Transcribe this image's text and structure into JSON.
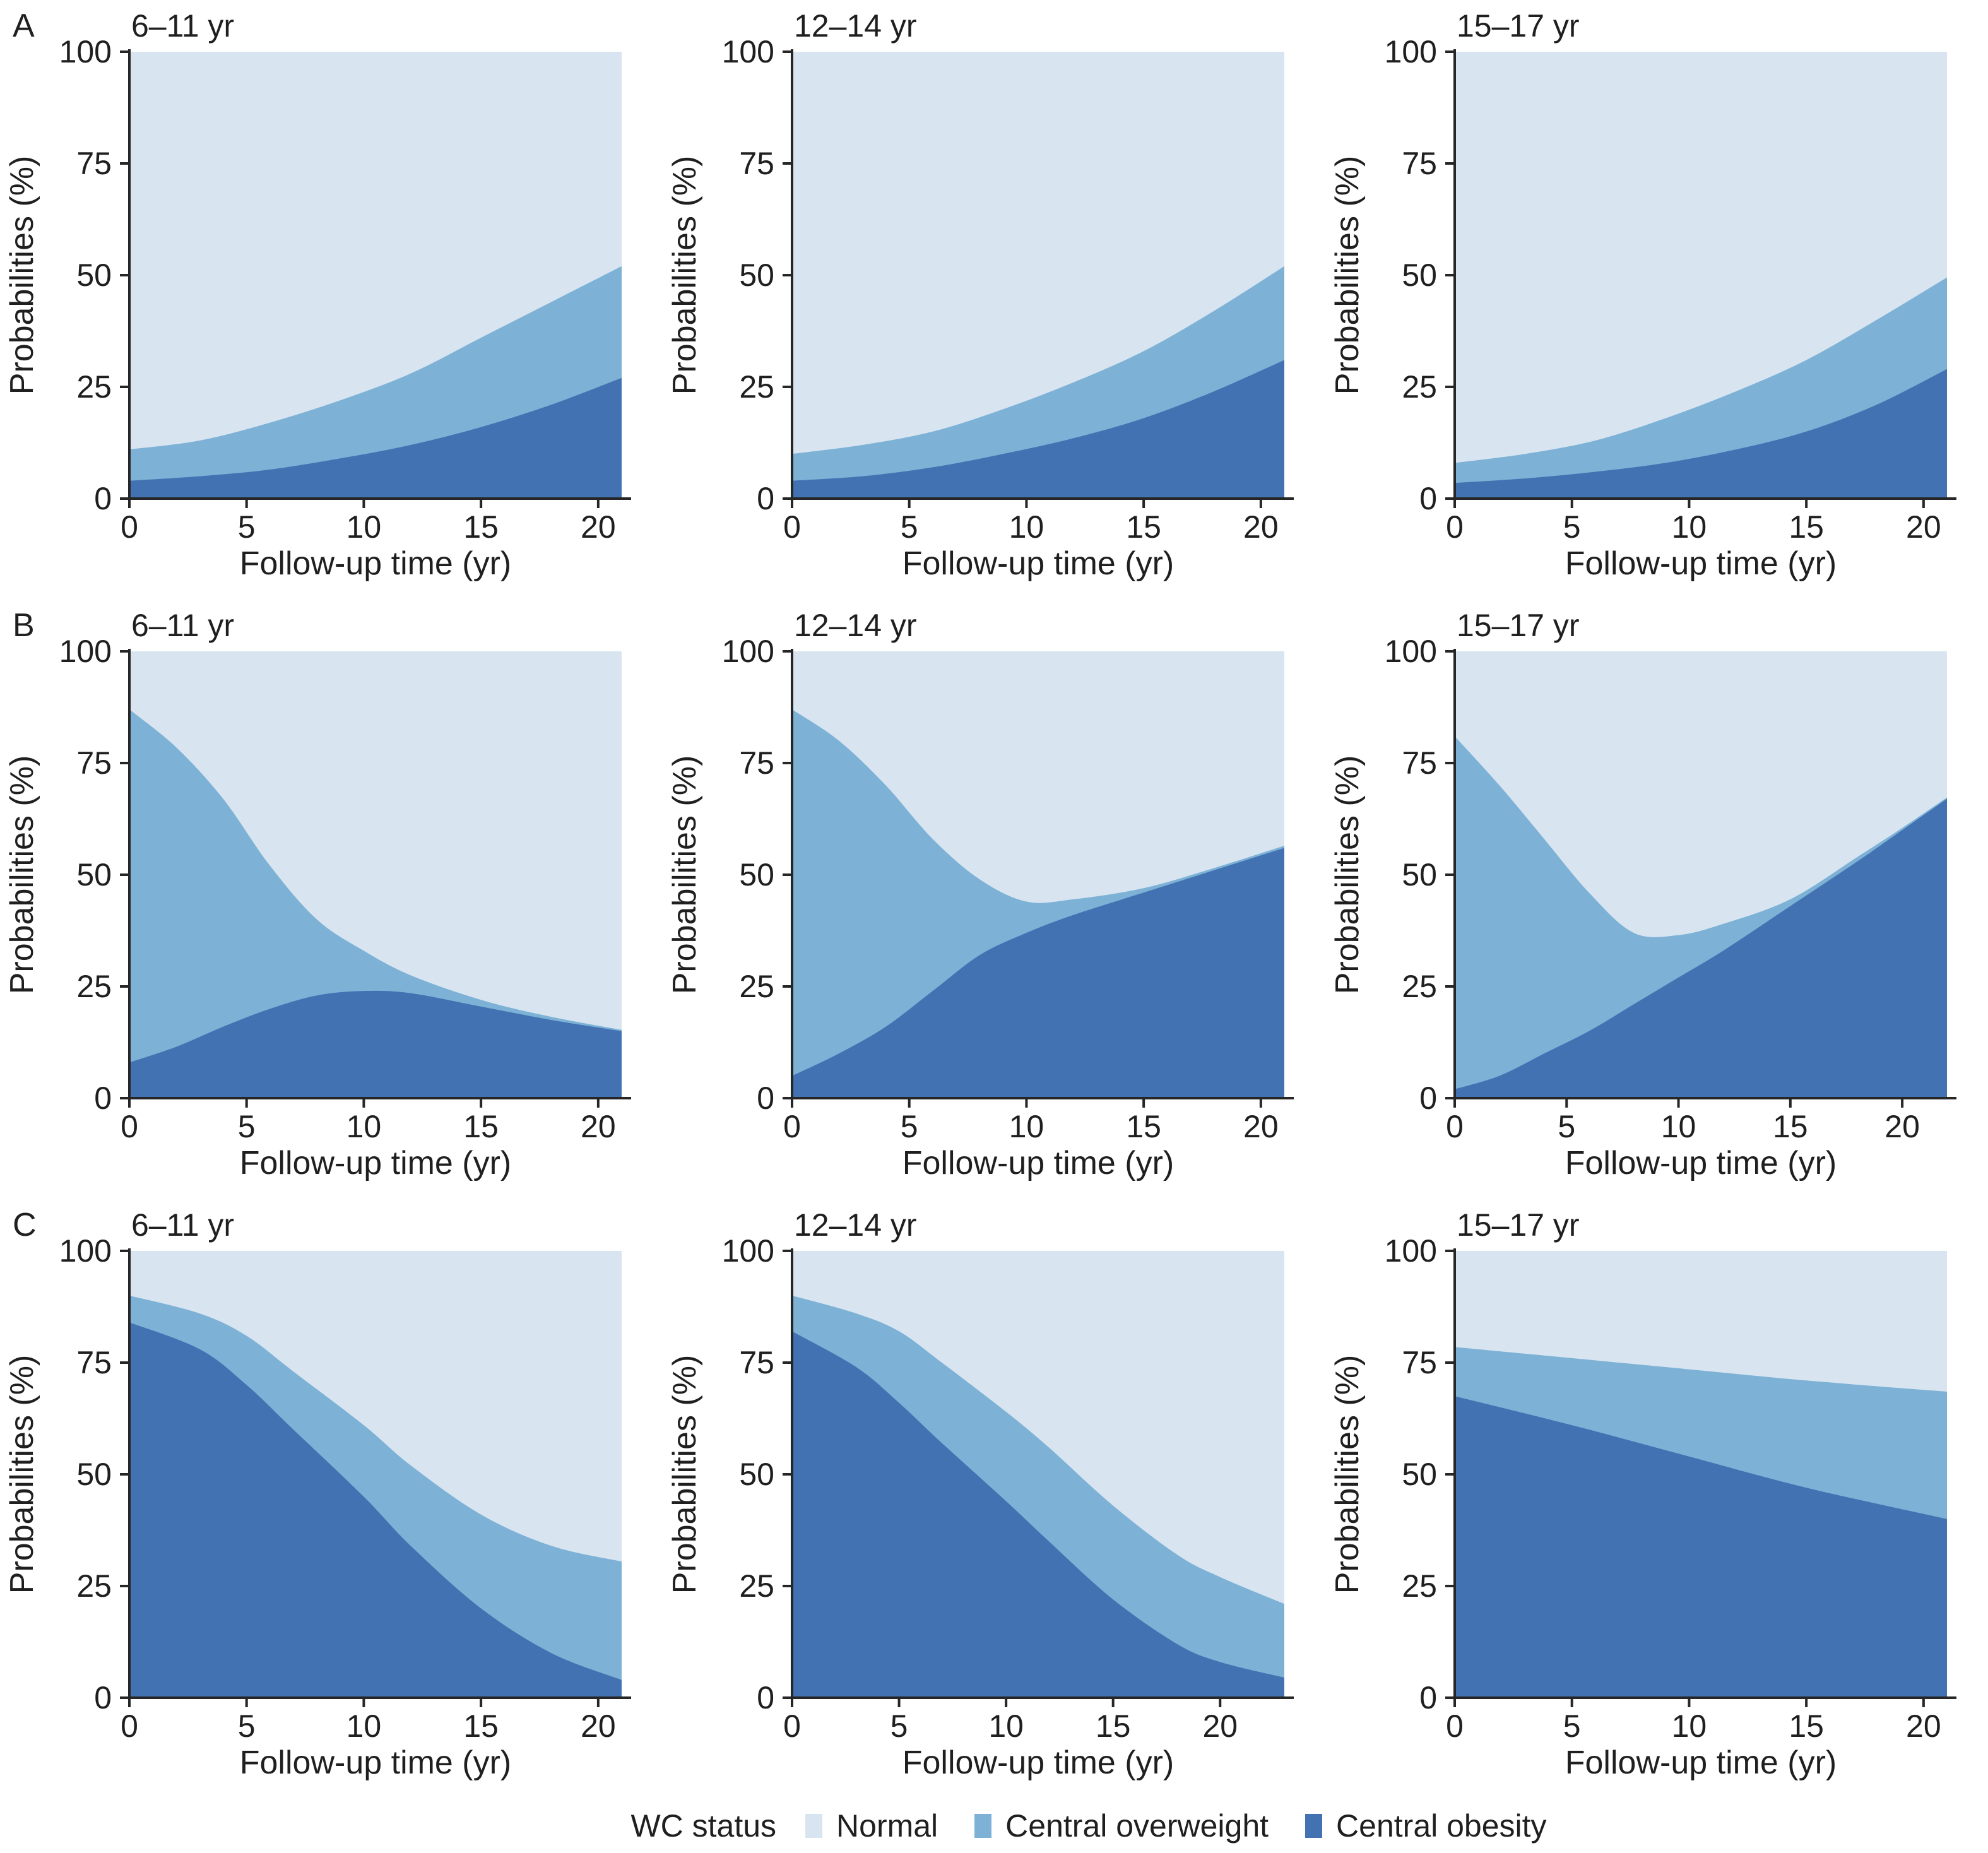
{
  "figure": {
    "ylabel": "Probabilities (%)",
    "xlabel": "Follow-up time (yr)",
    "yticks": [
      0,
      25,
      50,
      75,
      100
    ],
    "xticks": [
      0,
      5,
      10,
      15,
      20
    ],
    "axis_color": "#262626",
    "legend": {
      "label": "WC status",
      "items": [
        {
          "label": "Normal",
          "color": "#d8e5f1"
        },
        {
          "label": "Central overweight",
          "color": "#7db2d6"
        },
        {
          "label": "Central obesity",
          "color": "#4272b2"
        }
      ]
    }
  },
  "chart_data": [
    {
      "id": "a-6-11",
      "type": "area",
      "row_label": "A",
      "title": "6–11 yr",
      "xlabel": "Follow-up time (yr)",
      "ylabel": "Probabilities (%)",
      "ylim": [
        0,
        100
      ],
      "xmax": 21,
      "x": [
        0,
        3,
        6,
        9,
        12,
        15,
        18,
        21
      ],
      "series": [
        {
          "name": "Central obesity",
          "values": [
            4,
            5,
            6.5,
            9,
            12,
            16,
            21,
            27
          ]
        },
        {
          "name": "Central overweight",
          "values": [
            7,
            8,
            10.5,
            13,
            16,
            20,
            23,
            25
          ]
        },
        {
          "name": "Normal",
          "values": [
            89,
            87,
            83,
            78,
            72,
            64,
            56,
            48
          ]
        }
      ]
    },
    {
      "id": "a-12-14",
      "type": "area",
      "row_label": "",
      "title": "12–14 yr",
      "xlabel": "Follow-up time (yr)",
      "ylabel": "Probabilities (%)",
      "ylim": [
        0,
        100
      ],
      "xmax": 21,
      "x": [
        0,
        3,
        6,
        9,
        12,
        15,
        18,
        21
      ],
      "series": [
        {
          "name": "Central obesity",
          "values": [
            4,
            5,
            7,
            10,
            13.5,
            18,
            24,
            31
          ]
        },
        {
          "name": "Central overweight",
          "values": [
            6,
            7,
            8,
            10,
            12.5,
            15,
            18,
            21
          ]
        },
        {
          "name": "Normal",
          "values": [
            90,
            88,
            85,
            80,
            74,
            67,
            58,
            48
          ]
        }
      ]
    },
    {
      "id": "a-15-17",
      "type": "area",
      "row_label": "",
      "title": "15–17 yr",
      "xlabel": "Follow-up time (yr)",
      "ylabel": "Probabilities (%)",
      "ylim": [
        0,
        100
      ],
      "xmax": 21,
      "x": [
        0,
        3,
        6,
        9,
        12,
        15,
        18,
        21
      ],
      "series": [
        {
          "name": "Central obesity",
          "values": [
            3.5,
            4.5,
            6,
            8,
            11,
            15,
            21,
            29
          ]
        },
        {
          "name": "Central overweight",
          "values": [
            4.5,
            5.5,
            7,
            10,
            13,
            16,
            19,
            20.5
          ]
        },
        {
          "name": "Normal",
          "values": [
            92,
            90,
            87,
            82,
            76,
            69,
            60,
            50.5
          ]
        }
      ]
    },
    {
      "id": "b-6-11",
      "type": "area",
      "row_label": "B",
      "title": "6–11 yr",
      "xlabel": "Follow-up time (yr)",
      "ylabel": "Probabilities (%)",
      "ylim": [
        0,
        100
      ],
      "xmax": 21,
      "x": [
        0,
        2,
        4,
        6,
        8,
        10,
        12,
        15,
        18,
        21
      ],
      "series": [
        {
          "name": "Central obesity",
          "values": [
            8,
            11.5,
            16,
            20,
            23,
            24,
            23.5,
            20.5,
            17.5,
            15
          ]
        },
        {
          "name": "Central overweight",
          "values": [
            79,
            67,
            51,
            32,
            17,
            9,
            4,
            1.5,
            0.7,
            0.3
          ]
        },
        {
          "name": "Normal",
          "values": [
            13,
            21.5,
            33,
            48,
            60,
            67,
            72.5,
            78,
            81.8,
            84.7
          ]
        }
      ]
    },
    {
      "id": "b-12-14",
      "type": "area",
      "row_label": "",
      "title": "12–14 yr",
      "xlabel": "Follow-up time (yr)",
      "ylabel": "Probabilities (%)",
      "ylim": [
        0,
        100
      ],
      "xmax": 21,
      "x": [
        0,
        2,
        4,
        6,
        8,
        10,
        12,
        15,
        18,
        21
      ],
      "series": [
        {
          "name": "Central obesity",
          "values": [
            5,
            10,
            16,
            24,
            32,
            37,
            41,
            46,
            51,
            56
          ]
        },
        {
          "name": "Central overweight",
          "values": [
            82,
            70,
            54,
            34,
            17,
            7,
            3.5,
            1,
            0.5,
            0.5
          ]
        },
        {
          "name": "Normal",
          "values": [
            13,
            20,
            30,
            42,
            51,
            56,
            55.5,
            53,
            48.5,
            43.5
          ]
        }
      ]
    },
    {
      "id": "b-15-17",
      "type": "area",
      "row_label": "",
      "title": "15–17 yr",
      "xlabel": "Follow-up time (yr)",
      "ylabel": "Probabilities (%)",
      "ylim": [
        0,
        100
      ],
      "xmax": 22,
      "x": [
        0,
        2,
        4,
        6,
        8,
        10,
        12,
        15,
        18,
        20,
        22
      ],
      "series": [
        {
          "name": "Central obesity",
          "values": [
            2,
            5,
            10,
            15,
            21,
            27,
            33,
            43,
            53,
            60,
            67
          ]
        },
        {
          "name": "Central overweight",
          "values": [
            79,
            65,
            48,
            31,
            16,
            9.5,
            6,
            1.5,
            1,
            0.5,
            0.3
          ]
        },
        {
          "name": "Normal",
          "values": [
            19,
            30,
            42,
            54,
            63,
            63.5,
            61,
            55.5,
            46,
            39.5,
            32.7
          ]
        }
      ]
    },
    {
      "id": "c-6-11",
      "type": "area",
      "row_label": "C",
      "title": "6–11 yr",
      "xlabel": "Follow-up time (yr)",
      "ylabel": "Probabilities (%)",
      "ylim": [
        0,
        100
      ],
      "xmax": 21,
      "x": [
        0,
        3,
        5,
        7,
        10,
        12,
        15,
        18,
        21
      ],
      "series": [
        {
          "name": "Central obesity",
          "values": [
            84,
            78,
            70,
            60,
            45,
            34,
            20,
            10,
            4
          ]
        },
        {
          "name": "Central overweight",
          "values": [
            6,
            8,
            11,
            13,
            16,
            18,
            21,
            24,
            26.5
          ]
        },
        {
          "name": "Normal",
          "values": [
            10,
            14,
            19,
            27,
            39,
            48,
            59,
            66,
            69.5
          ]
        }
      ]
    },
    {
      "id": "c-12-14",
      "type": "area",
      "row_label": "",
      "title": "12–14 yr",
      "xlabel": "Follow-up time (yr)",
      "ylabel": "Probabilities (%)",
      "ylim": [
        0,
        100
      ],
      "xmax": 23,
      "x": [
        0,
        3,
        5,
        7,
        10,
        12,
        15,
        18,
        20,
        23
      ],
      "series": [
        {
          "name": "Central obesity",
          "values": [
            82,
            74,
            66,
            57,
            44,
            35,
            22,
            12,
            8,
            4.5
          ]
        },
        {
          "name": "Central overweight",
          "values": [
            8,
            12,
            16,
            18,
            20,
            21,
            21,
            20,
            19,
            16.5
          ]
        },
        {
          "name": "Normal",
          "values": [
            10,
            14,
            18,
            25,
            36,
            44,
            57,
            68,
            73,
            79
          ]
        }
      ]
    },
    {
      "id": "c-15-17",
      "type": "area",
      "row_label": "",
      "title": "15–17 yr",
      "xlabel": "Follow-up time (yr)",
      "ylabel": "Probabilities (%)",
      "ylim": [
        0,
        100
      ],
      "xmax": 21,
      "x": [
        0,
        5,
        10,
        15,
        21
      ],
      "series": [
        {
          "name": "Central obesity",
          "values": [
            67.5,
            61,
            54,
            47,
            40
          ]
        },
        {
          "name": "Central overweight",
          "values": [
            11,
            15,
            19.5,
            24,
            28.5
          ]
        },
        {
          "name": "Normal",
          "values": [
            21.5,
            24,
            26.5,
            29,
            31.5
          ]
        }
      ]
    }
  ]
}
